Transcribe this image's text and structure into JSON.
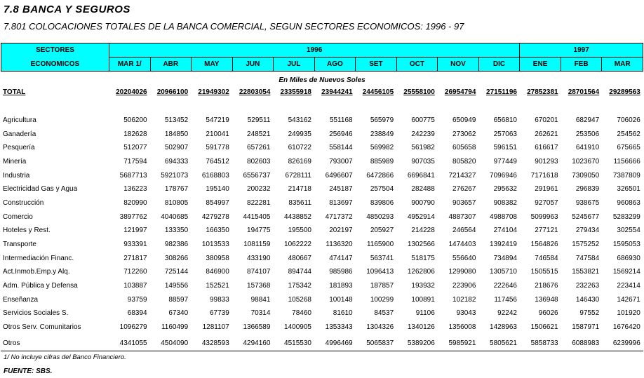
{
  "title": "7.8  BANCA Y SEGUROS",
  "subtitle": "7.801 COLOCACIONES TOTALES DE LA BANCA COMERCIAL, SEGUN SECTORES ECONOMICOS: 1996 - 97",
  "header": {
    "sector_line1": "SECTORES",
    "sector_line2": "ECONOMICOS",
    "year1": "1996",
    "year2": "1997",
    "months": [
      "MAR 1/",
      "ABR",
      "MAY",
      "JUN",
      "JUL",
      "AGO",
      "SET",
      "OCT",
      "NOV",
      "DIC",
      "ENE",
      "FEB",
      "MAR"
    ],
    "header_color": "#00ffff"
  },
  "units": "En Miles de Nuevos Soles",
  "total": {
    "label": "TOTAL",
    "values": [
      "20204026",
      "20966100",
      "21949302",
      "22803054",
      "23355918",
      "23944241",
      "24456105",
      "25558100",
      "26954794",
      "27151196",
      "27852381",
      "28701564",
      "29289563"
    ]
  },
  "rows": [
    {
      "label": "Agricultura",
      "values": [
        "506200",
        "513452",
        "547219",
        "529511",
        "543162",
        "551168",
        "565979",
        "600775",
        "650949",
        "656810",
        "670201",
        "682947",
        "706026"
      ]
    },
    {
      "label": "Ganadería",
      "values": [
        "182628",
        "184850",
        "210041",
        "248521",
        "249935",
        "256946",
        "238849",
        "242239",
        "273062",
        "257063",
        "262621",
        "253506",
        "254562"
      ]
    },
    {
      "label": "Pesquería",
      "values": [
        "512077",
        "502907",
        "591778",
        "657261",
        "610722",
        "558144",
        "569982",
        "561982",
        "605658",
        "596151",
        "616617",
        "641910",
        "675665"
      ]
    },
    {
      "label": "Minería",
      "values": [
        "717594",
        "694333",
        "764512",
        "802603",
        "826169",
        "793007",
        "885989",
        "907035",
        "805820",
        "977449",
        "901293",
        "1023670",
        "1156666"
      ]
    },
    {
      "label": "Industria",
      "values": [
        "5687713",
        "5921073",
        "6168803",
        "6556737",
        "6728111",
        "6496607",
        "6472866",
        "6696841",
        "7214327",
        "7096946",
        "7171618",
        "7309050",
        "7387809"
      ]
    },
    {
      "label": "Electricidad Gas y Agua",
      "values": [
        "136223",
        "178767",
        "195140",
        "200232",
        "214718",
        "245187",
        "257504",
        "282488",
        "276267",
        "295632",
        "291961",
        "296839",
        "326501"
      ]
    },
    {
      "label": "Construcción",
      "values": [
        "820990",
        "810805",
        "854997",
        "822281",
        "835611",
        "813697",
        "839806",
        "900790",
        "903657",
        "908382",
        "927057",
        "938675",
        "960863"
      ]
    },
    {
      "label": "Comercio",
      "values": [
        "3897762",
        "4040685",
        "4279278",
        "4415405",
        "4438852",
        "4717372",
        "4850293",
        "4952914",
        "4887307",
        "4988708",
        "5099963",
        "5245677",
        "5283299"
      ]
    },
    {
      "label": "Hoteles y Rest.",
      "values": [
        "121997",
        "133350",
        "166350",
        "194775",
        "195500",
        "202197",
        "205927",
        "214228",
        "246564",
        "274104",
        "277121",
        "279434",
        "302554"
      ]
    },
    {
      "label": "Transporte",
      "values": [
        "933391",
        "982386",
        "1013533",
        "1081159",
        "1062222",
        "1136320",
        "1165900",
        "1302566",
        "1474403",
        "1392419",
        "1564826",
        "1575252",
        "1595053"
      ]
    },
    {
      "label": "Intermediación Financ.",
      "values": [
        "271817",
        "308266",
        "380958",
        "433190",
        "480667",
        "474147",
        "563741",
        "518175",
        "556640",
        "734894",
        "746584",
        "747584",
        "686930"
      ]
    },
    {
      "label": "Act.Inmob.Emp.y Alq.",
      "values": [
        "712260",
        "725144",
        "846900",
        "874107",
        "894744",
        "985986",
        "1096413",
        "1262806",
        "1299080",
        "1305710",
        "1505515",
        "1553821",
        "1569214"
      ]
    },
    {
      "label": "Adm. Pública y Defensa",
      "values": [
        "103887",
        "149556",
        "152521",
        "157368",
        "175342",
        "181893",
        "187857",
        "193932",
        "223906",
        "222646",
        "218676",
        "232263",
        "223414"
      ]
    },
    {
      "label": "Enseñanza",
      "values": [
        "93759",
        "88597",
        "99833",
        "98841",
        "105268",
        "100148",
        "100299",
        "100891",
        "102182",
        "117456",
        "136948",
        "146430",
        "142671"
      ]
    },
    {
      "label": "Servicios Sociales S.",
      "values": [
        "68394",
        "67340",
        "67739",
        "70314",
        "78460",
        "81610",
        "84537",
        "91106",
        "93043",
        "92242",
        "96026",
        "97552",
        "101920"
      ]
    },
    {
      "label": "Otros Serv. Comunitarios",
      "values": [
        "1096279",
        "1160499",
        "1281107",
        "1366589",
        "1400905",
        "1353343",
        "1304326",
        "1340126",
        "1356008",
        "1428963",
        "1506621",
        "1587971",
        "1676420"
      ]
    },
    {
      "label": "Otros",
      "values": [
        "4341055",
        "4504090",
        "4328593",
        "4294160",
        "4515530",
        "4996469",
        "5065837",
        "5389206",
        "5985921",
        "5805621",
        "5858733",
        "6088983",
        "6239996"
      ]
    }
  ],
  "footnote": "1/ No incluye cifras del Banco Financiero.",
  "source": "FUENTE: SBS."
}
